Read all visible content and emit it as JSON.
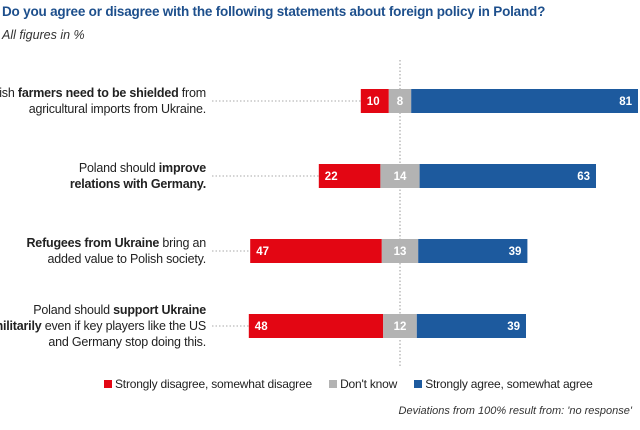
{
  "title": "Do you agree or disagree with the following statements about foreign policy in Poland?",
  "subtitle": "All figures in %",
  "statements": [
    {
      "lines": [
        [
          [
            "Polish ",
            false
          ],
          [
            "farmers need to be shielded",
            true
          ],
          [
            " from",
            false
          ]
        ],
        [
          [
            "agricultural imports from Ukraine.",
            false
          ]
        ]
      ]
    },
    {
      "lines": [
        [
          [
            "Poland should ",
            false
          ],
          [
            "improve",
            true
          ]
        ],
        [
          [
            "relations with Germany.",
            true
          ]
        ]
      ]
    },
    {
      "lines": [
        [
          [
            "Refugees from Ukraine",
            true
          ],
          [
            " bring an",
            false
          ]
        ],
        [
          [
            "added value to Polish society.",
            false
          ]
        ]
      ]
    },
    {
      "lines": [
        [
          [
            "Poland should ",
            false
          ],
          [
            "support Ukraine",
            true
          ]
        ],
        [
          [
            "militarily",
            true
          ],
          [
            " even if key players like the US",
            false
          ]
        ],
        [
          [
            "and Germany stop doing this.",
            false
          ]
        ]
      ]
    }
  ],
  "legend": {
    "disagree": "Strongly disagree, somewhat disagree",
    "dont_know": "Don't know",
    "agree": "Strongly agree, somewhat agree"
  },
  "footnote": "Deviations from 100% result from: 'no response'",
  "colors": {
    "disagree": "#e30613",
    "dont_know": "#b3b3b3",
    "agree": "#1d5a9e"
  },
  "chart_data": {
    "type": "bar",
    "orientation": "horizontal",
    "stacking": "diverging",
    "title": "Do you agree or disagree with the following statements about foreign policy in Poland?",
    "subtitle": "All figures in %",
    "categories": [
      "Polish farmers need to be shielded from agricultural imports from Ukraine.",
      "Poland should improve relations with Germany.",
      "Refugees from Ukraine bring an added value to Polish society.",
      "Poland should support Ukraine militarily even if key players like the US and Germany stop doing this."
    ],
    "series": [
      {
        "name": "Strongly disagree, somewhat disagree",
        "values": [
          10,
          22,
          47,
          48
        ]
      },
      {
        "name": "Don't know",
        "values": [
          8,
          14,
          13,
          12
        ]
      },
      {
        "name": "Strongly agree, somewhat agree",
        "values": [
          81,
          63,
          39,
          39
        ]
      }
    ],
    "legend_position": "bottom",
    "grid": false
  }
}
